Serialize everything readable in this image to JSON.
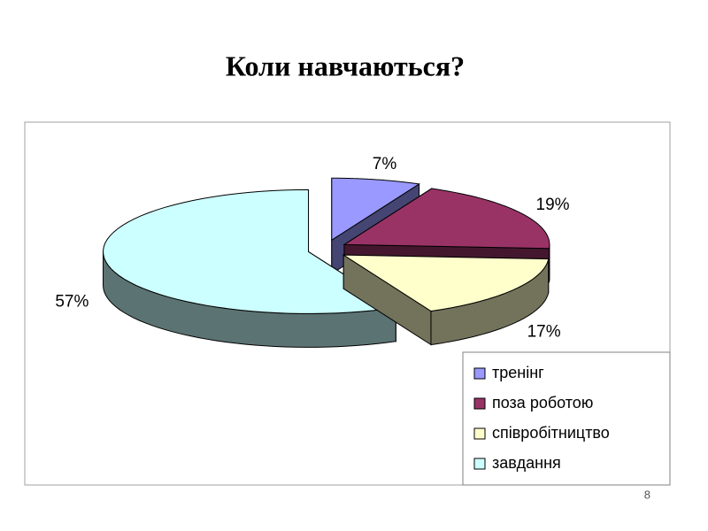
{
  "chart_data": {
    "type": "pie3d",
    "title": "Коли навчаються?",
    "categories": [
      "тренінг",
      "поза роботою",
      "співробітництво",
      "завдання"
    ],
    "values": [
      7,
      19,
      17,
      57
    ],
    "value_labels": [
      "7%",
      "19%",
      "17%",
      "57%"
    ],
    "colors": [
      "#9999ff",
      "#993366",
      "#ffffcc",
      "#ccffff"
    ],
    "legend": "bottom-right"
  },
  "footer": {
    "page_number": "8"
  }
}
